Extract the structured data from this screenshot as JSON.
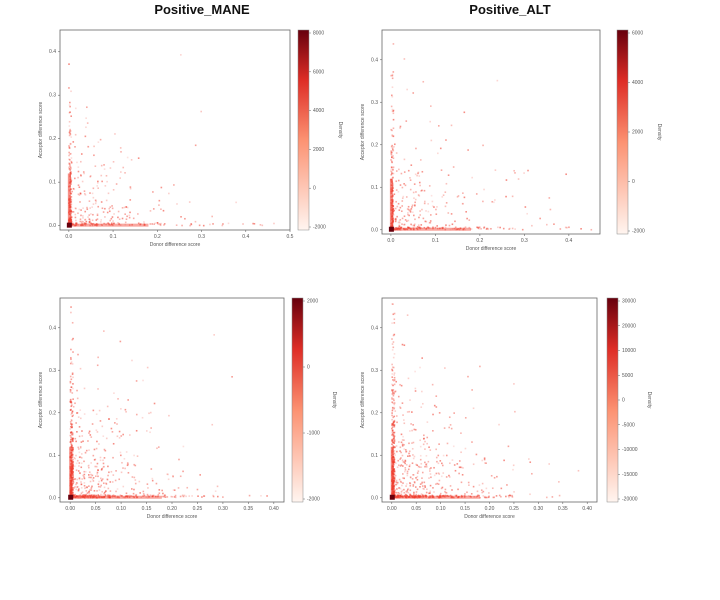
{
  "titles": {
    "left": "Positive_MANE",
    "right": "Positive_ALT"
  },
  "colors": {
    "low": "#fff5f0",
    "high": "#67000d",
    "point": "#ef3b2c",
    "frame": "#666666"
  },
  "chart_data": [
    {
      "type": "heatmap",
      "title": "Positive_MANE",
      "xlabel": "Donor difference score",
      "ylabel": "Acceptor difference score",
      "xlim": [
        -0.02,
        0.5
      ],
      "ylim": [
        -0.01,
        0.45
      ],
      "xticks": [
        "0.0",
        "0.1",
        "0.2",
        "0.3",
        "0.4",
        "0.5"
      ],
      "yticks": [
        "0.0",
        "0.1",
        "0.2",
        "0.3",
        "0.4"
      ],
      "xtick_values": [
        0.0,
        0.1,
        0.2,
        0.3,
        0.4,
        0.5
      ],
      "ytick_values": [
        0.0,
        0.1,
        0.2,
        0.3,
        0.4
      ],
      "colorbar": {
        "label": "Density",
        "range": [
          -2000,
          8000
        ],
        "ticks": [
          "8000",
          "6000",
          "4000",
          "2000",
          "0",
          "-2000"
        ]
      },
      "density": {
        "x_spread": 0.09,
        "y_spread": 0.08,
        "n": 520,
        "peak": [
          0.0,
          0.0
        ]
      },
      "grid": false
    },
    {
      "type": "heatmap",
      "title": "Positive_ALT",
      "xlabel": "Donor difference score",
      "ylabel": "Acceptor difference score",
      "xlim": [
        -0.02,
        0.47
      ],
      "ylim": [
        -0.01,
        0.47
      ],
      "xticks": [
        "0.0",
        "0.1",
        "0.2",
        "0.3",
        "0.4"
      ],
      "yticks": [
        "0.0",
        "0.1",
        "0.2",
        "0.3",
        "0.4"
      ],
      "xtick_values": [
        0.0,
        0.1,
        0.2,
        0.3,
        0.4
      ],
      "ytick_values": [
        0.0,
        0.1,
        0.2,
        0.3,
        0.4
      ],
      "colorbar": {
        "label": "Density",
        "range": [
          -2000,
          6000
        ],
        "ticks": [
          "6000",
          "4000",
          "2000",
          "0",
          "-2000"
        ]
      },
      "density": {
        "x_spread": 0.08,
        "y_spread": 0.08,
        "n": 560,
        "peak": [
          0.0,
          0.0
        ]
      },
      "grid": false
    },
    {
      "type": "heatmap",
      "title": "",
      "xlabel": "Donor difference score",
      "ylabel": "Acceptor difference score",
      "xlim": [
        -0.02,
        0.42
      ],
      "ylim": [
        -0.01,
        0.47
      ],
      "xticks": [
        "0.00",
        "0.05",
        "0.10",
        "0.15",
        "0.20",
        "0.25",
        "0.30",
        "0.35",
        "0.40"
      ],
      "yticks": [
        "0.0",
        "0.1",
        "0.2",
        "0.3",
        "0.4"
      ],
      "xtick_values": [
        0.0,
        0.05,
        0.1,
        0.15,
        0.2,
        0.25,
        0.3,
        0.35,
        0.4
      ],
      "ytick_values": [
        0.0,
        0.1,
        0.2,
        0.3,
        0.4
      ],
      "colorbar": {
        "label": "Density",
        "range": [
          -2000,
          3000
        ],
        "ticks": [
          "2000",
          "0",
          "-1000",
          "-2000"
        ]
      },
      "density": {
        "x_spread": 0.07,
        "y_spread": 0.09,
        "n": 900,
        "peak": [
          0.0,
          0.0
        ]
      },
      "grid": false
    },
    {
      "type": "heatmap",
      "title": "",
      "xlabel": "Donor difference score",
      "ylabel": "Acceptor difference score",
      "xlim": [
        -0.02,
        0.42
      ],
      "ylim": [
        -0.01,
        0.47
      ],
      "xticks": [
        "0.00",
        "0.05",
        "0.10",
        "0.15",
        "0.20",
        "0.25",
        "0.30",
        "0.35",
        "0.40"
      ],
      "yticks": [
        "0.0",
        "0.1",
        "0.2",
        "0.3",
        "0.4"
      ],
      "xtick_values": [
        0.0,
        0.05,
        0.1,
        0.15,
        0.2,
        0.25,
        0.3,
        0.35,
        0.4
      ],
      "ytick_values": [
        0.0,
        0.1,
        0.2,
        0.3,
        0.4
      ],
      "colorbar": {
        "label": "Density",
        "range": [
          -20000,
          30000
        ],
        "ticks": [
          "30000",
          "20000",
          "10000",
          "5000",
          "0",
          "-5000",
          "-10000",
          "-15000",
          "-20000"
        ]
      },
      "density": {
        "x_spread": 0.07,
        "y_spread": 0.09,
        "n": 950,
        "peak": [
          0.0,
          0.0
        ]
      },
      "grid": false
    }
  ]
}
